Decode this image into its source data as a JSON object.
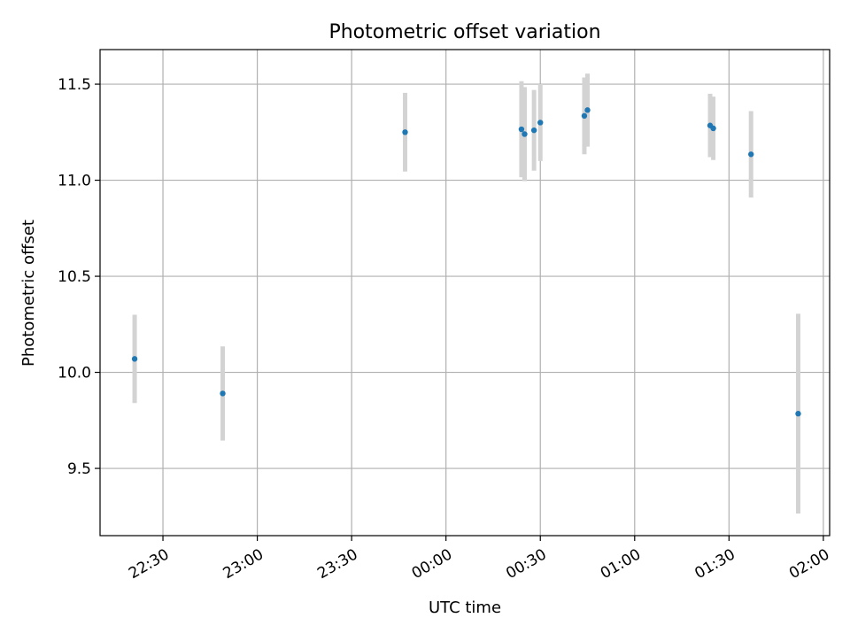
{
  "chart_data": {
    "type": "scatter",
    "title": "Photometric offset variation",
    "xlabel": "UTC time",
    "ylabel": "Photometric offset",
    "x_axis_kind": "time",
    "xlim": [
      "22:10",
      "02:02"
    ],
    "ylim": [
      9.15,
      11.68
    ],
    "x_ticks": [
      "22:30",
      "23:00",
      "23:30",
      "00:00",
      "00:30",
      "01:00",
      "01:30",
      "02:00"
    ],
    "y_ticks": [
      "9.5",
      "10.0",
      "10.5",
      "11.0",
      "11.5"
    ],
    "grid": true,
    "legend": "none",
    "colors": {
      "points": "#1f77b4",
      "error_bars": "#d3d3d3",
      "grid": "#b0b0b0",
      "axes": "#000000"
    },
    "points": [
      {
        "x": "22:21",
        "y": 10.07,
        "err": 0.23
      },
      {
        "x": "22:49",
        "y": 9.89,
        "err": 0.245
      },
      {
        "x": "23:47",
        "y": 11.25,
        "err": 0.205
      },
      {
        "x": "00:24",
        "y": 11.265,
        "err": 0.25
      },
      {
        "x": "00:25",
        "y": 11.24,
        "err": 0.245
      },
      {
        "x": "00:28",
        "y": 11.26,
        "err": 0.21
      },
      {
        "x": "00:30",
        "y": 11.3,
        "err": 0.2
      },
      {
        "x": "00:44",
        "y": 11.335,
        "err": 0.2
      },
      {
        "x": "00:45",
        "y": 11.365,
        "err": 0.19
      },
      {
        "x": "01:24",
        "y": 11.285,
        "err": 0.165
      },
      {
        "x": "01:25",
        "y": 11.27,
        "err": 0.165
      },
      {
        "x": "01:37",
        "y": 11.135,
        "err": 0.225
      },
      {
        "x": "01:52",
        "y": 9.785,
        "err": 0.52
      }
    ]
  }
}
